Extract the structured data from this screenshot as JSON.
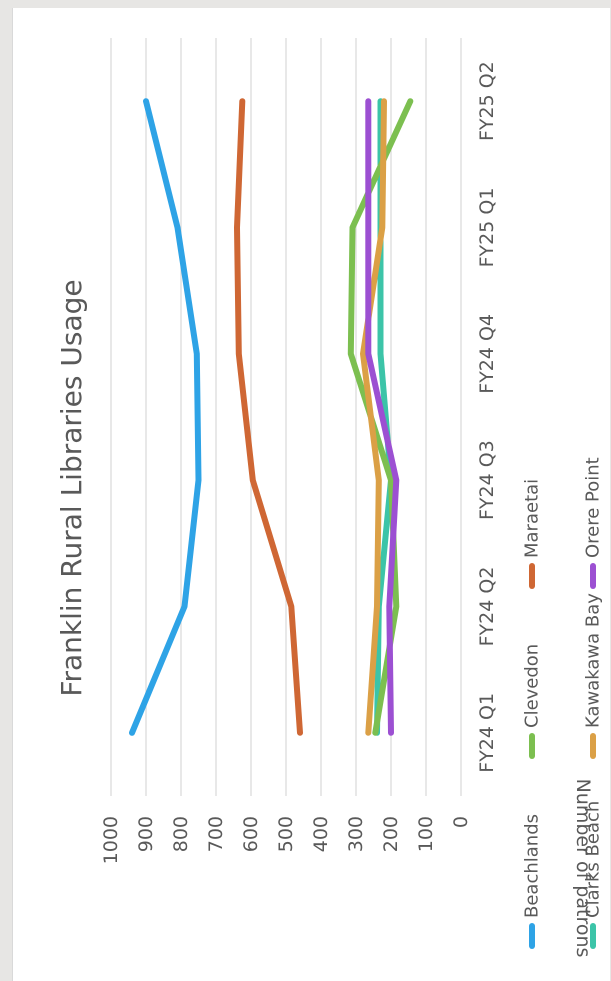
{
  "chart_data": {
    "type": "line",
    "title": "Franklin Rural Libraries Usage",
    "xlabel": "",
    "ylabel": "Number of patrons",
    "ylim": [
      0,
      1000
    ],
    "yticks": [
      0,
      100,
      200,
      300,
      400,
      500,
      600,
      700,
      800,
      900,
      1000
    ],
    "categories": [
      "FY24 Q1",
      "FY24 Q2",
      "FY24 Q3",
      "FY24 Q4",
      "FY25 Q1",
      "FY25 Q2"
    ],
    "grid": true,
    "legend_position": "bottom",
    "series": [
      {
        "name": "Beachlands",
        "color": "#2ea3e6",
        "values": [
          940,
          790,
          750,
          755,
          810,
          900
        ]
      },
      {
        "name": "Clarks Beach",
        "color": "#3cc4a8",
        "values": [
          240,
          235,
          200,
          230,
          230,
          230
        ]
      },
      {
        "name": "Clevedon",
        "color": "#7cbf50",
        "values": [
          245,
          185,
          200,
          315,
          310,
          145
        ]
      },
      {
        "name": "Kawakawa Bay",
        "color": "#dba046",
        "values": [
          265,
          240,
          235,
          280,
          225,
          220
        ]
      },
      {
        "name": "Maraetai",
        "color": "#cf6734",
        "values": [
          460,
          485,
          595,
          635,
          640,
          625
        ]
      },
      {
        "name": "Orere Point",
        "color": "#9c50d2",
        "values": [
          200,
          205,
          185,
          265,
          265,
          265
        ]
      }
    ]
  }
}
